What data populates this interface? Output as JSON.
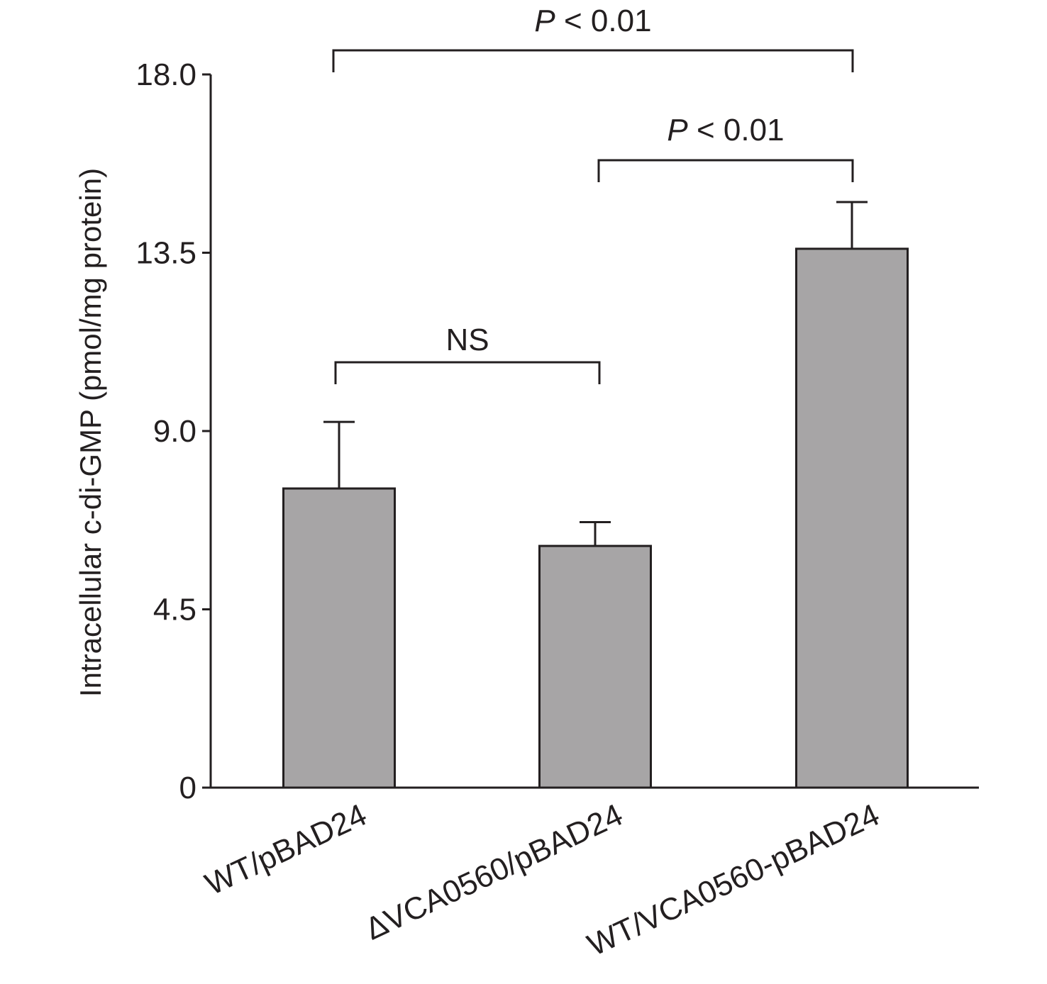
{
  "chart_data": {
    "type": "bar",
    "ylabel": "Intracellular c-di-GMP (pmol/mg protein)",
    "ylim": [
      0,
      18.0
    ],
    "yticks": [
      "0",
      "4.5",
      "9.0",
      "13.5",
      "18.0"
    ],
    "ytick_values": [
      0,
      4.5,
      9.0,
      13.5,
      18.0
    ],
    "categories": [
      "WT/pBAD24",
      "ΔVCA0560/pBAD24",
      "WT/VCA0560-pBAD24"
    ],
    "values": [
      7.55,
      6.1,
      13.6
    ],
    "errors": [
      1.68,
      0.6,
      1.18
    ],
    "bar_color": "#a7a5a6",
    "comparisons": [
      {
        "from": 0,
        "to": 1,
        "label_italic": "",
        "label": "NS"
      },
      {
        "from": 1,
        "to": 2,
        "label_italic": "P",
        "label": " < 0.01"
      },
      {
        "from": 0,
        "to": 2,
        "label_italic": "P",
        "label": " < 0.01"
      }
    ],
    "legend": "none",
    "grid": false
  }
}
